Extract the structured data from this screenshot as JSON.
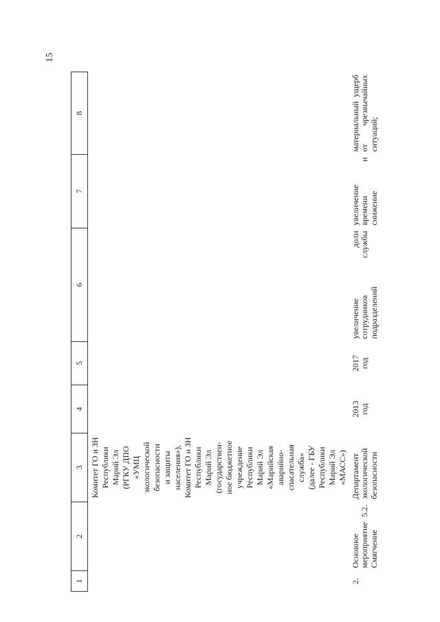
{
  "page": {
    "number": "15"
  },
  "colors": {
    "ink": "#1c1c1c",
    "table_line": "#3c3c3c",
    "background": "#ffffff"
  },
  "table": {
    "header": {
      "cols": [
        "1",
        "2",
        "3",
        "4",
        "5",
        "6",
        "7",
        "8"
      ]
    },
    "row_continuation": {
      "executor_lines": [
        "Комитет ГО и ЗН",
        "Республики",
        "Марий Эл",
        "(РГКУ ДПО",
        "«УМЦ",
        "экологической",
        "безопасности",
        "и защиты",
        "населения»),",
        "Комитет ГО и ЗН",
        "Республики",
        "Марий Эл",
        "(государствен-",
        "ное бюджетное",
        "учреждение",
        "Республики",
        "Марий Эл",
        "«Марийская",
        "аварийно-",
        "спасательная",
        "служба»",
        "(далее - ГБУ",
        "Республики",
        "Марий Эл",
        "«МАСС»)"
      ]
    },
    "row_main": {
      "num_lines": [
        [
          "2."
        ]
      ],
      "name_lines": [
        [
          "Основное"
        ],
        [
          "мероприятие",
          "5.2."
        ],
        [
          "Смягчение"
        ]
      ],
      "executor_lines": [
        [
          "Департамент"
        ],
        [
          "экологической"
        ],
        [
          "безопасности"
        ]
      ],
      "start_lines": [
        [
          "2013"
        ],
        [
          "год"
        ]
      ],
      "end_lines": [
        [
          "2017"
        ],
        [
          "год"
        ]
      ],
      "result_lines": [
        [
          "увеличение",
          "доли"
        ],
        [
          "сотрудников",
          "службы"
        ],
        [
          "подразделений"
        ]
      ],
      "consequence_lines": [
        [
          "увеличение"
        ],
        [
          "времени",
          "и"
        ],
        [
          "снижение"
        ]
      ],
      "indicator_lines": [
        [
          "материальный",
          "ущерб"
        ],
        [
          "от",
          "чрезвычайных"
        ],
        [
          "ситуаций;"
        ]
      ]
    }
  }
}
